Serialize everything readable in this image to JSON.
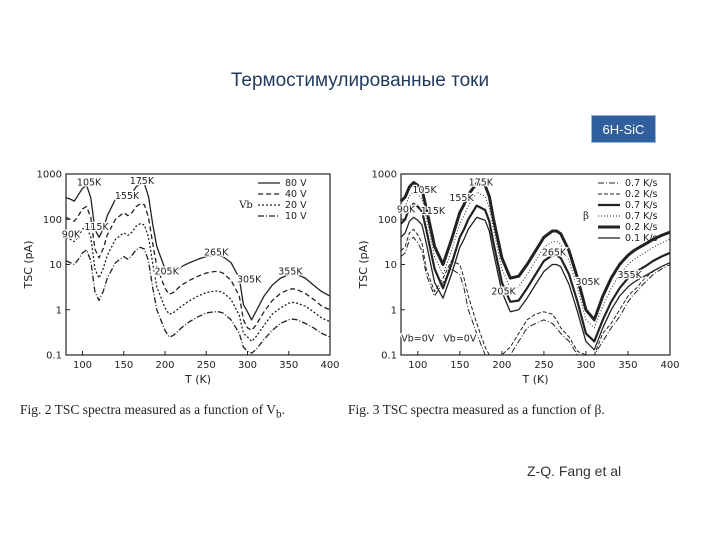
{
  "slide": {
    "title": "Термостимулированные токи",
    "badge": "6H-SiC",
    "author": "Z-Q. Fang et al"
  },
  "colors": {
    "title": "#1f3a5f",
    "badge_bg": "#2f5f9c",
    "badge_text": "#ffffff",
    "ink": "#222222"
  },
  "chart_data": [
    {
      "type": "line",
      "title": "",
      "caption": "Fig. 2   TSC spectra measured as a function of V",
      "xlabel": "T (K)",
      "ylabel": "TSC (pA)",
      "xlim": [
        80,
        400
      ],
      "ylim": [
        0.1,
        1000
      ],
      "yscale": "log",
      "xticks": [
        100,
        150,
        200,
        250,
        300,
        350,
        400
      ],
      "yticks": [
        {
          "value": 0.1,
          "label": "0.1"
        },
        {
          "value": 1,
          "label": "1"
        },
        {
          "value": 10,
          "label": "10"
        },
        {
          "value": 100,
          "label": "100"
        },
        {
          "value": 1000,
          "label": "1000"
        }
      ],
      "legend": {
        "placement": "top-right",
        "symbol": "Vb"
      },
      "annotations": [
        {
          "text": "105K",
          "x": 108,
          "y": 560
        },
        {
          "text": "175K",
          "x": 172,
          "y": 600
        },
        {
          "text": "155K",
          "x": 154,
          "y": 280
        },
        {
          "text": "115K",
          "x": 117,
          "y": 58
        },
        {
          "text": "90K",
          "x": 86,
          "y": 40
        },
        {
          "text": "265K",
          "x": 262,
          "y": 16
        },
        {
          "text": "205K",
          "x": 202,
          "y": 6
        },
        {
          "text": "305K",
          "x": 302,
          "y": 4
        },
        {
          "text": "355K",
          "x": 352,
          "y": 6
        }
      ],
      "series": [
        {
          "name": "80 V",
          "dash": "",
          "x": [
            80,
            85,
            90,
            95,
            100,
            105,
            110,
            115,
            120,
            125,
            130,
            140,
            150,
            155,
            160,
            165,
            170,
            175,
            180,
            185,
            190,
            200,
            205,
            210,
            220,
            230,
            240,
            250,
            260,
            265,
            270,
            280,
            290,
            295,
            300,
            305,
            310,
            320,
            330,
            340,
            350,
            355,
            360,
            370,
            380,
            390,
            400
          ],
          "y": [
            300,
            280,
            250,
            350,
            480,
            560,
            300,
            60,
            40,
            60,
            120,
            280,
            370,
            320,
            380,
            520,
            620,
            600,
            320,
            80,
            25,
            8,
            6,
            6.5,
            9,
            11,
            13,
            15,
            16,
            16,
            15,
            11,
            5,
            1.3,
            0.9,
            0.6,
            0.9,
            2,
            3.5,
            5,
            6,
            6.2,
            6,
            5,
            3.5,
            2.5,
            2
          ]
        },
        {
          "name": "40 V",
          "dash": "5,3",
          "x": [
            80,
            85,
            90,
            95,
            100,
            105,
            110,
            115,
            120,
            125,
            130,
            140,
            150,
            155,
            160,
            165,
            170,
            175,
            180,
            185,
            190,
            200,
            205,
            210,
            220,
            230,
            240,
            250,
            260,
            265,
            270,
            280,
            290,
            295,
            300,
            305,
            310,
            320,
            330,
            340,
            350,
            355,
            360,
            370,
            380,
            390,
            400
          ],
          "y": [
            110,
            100,
            90,
            120,
            170,
            190,
            110,
            22,
            14,
            22,
            45,
            100,
            140,
            120,
            140,
            190,
            220,
            210,
            110,
            30,
            9,
            3,
            2.2,
            2.4,
            3.5,
            4.5,
            5.5,
            6.5,
            7,
            7,
            6.5,
            4.5,
            2,
            0.6,
            0.4,
            0.35,
            0.45,
            0.9,
            1.6,
            2.3,
            2.8,
            2.9,
            2.8,
            2.3,
            1.7,
            1.2,
            1
          ]
        },
        {
          "name": "20 V",
          "dash": "2,2",
          "x": [
            80,
            85,
            90,
            95,
            100,
            105,
            110,
            115,
            120,
            125,
            130,
            140,
            150,
            155,
            160,
            165,
            170,
            175,
            180,
            185,
            190,
            200,
            205,
            210,
            220,
            230,
            240,
            250,
            260,
            265,
            270,
            280,
            290,
            295,
            300,
            305,
            310,
            320,
            330,
            340,
            350,
            355,
            360,
            370,
            380,
            390,
            400
          ],
          "y": [
            40,
            36,
            32,
            42,
            60,
            70,
            40,
            8,
            5,
            8,
            16,
            36,
            50,
            44,
            52,
            70,
            80,
            75,
            40,
            11,
            3.2,
            1.1,
            0.8,
            0.85,
            1.2,
            1.6,
            2,
            2.4,
            2.6,
            2.6,
            2.4,
            1.7,
            0.75,
            0.3,
            0.25,
            0.2,
            0.25,
            0.45,
            0.8,
            1.1,
            1.4,
            1.45,
            1.4,
            1.2,
            0.9,
            0.65,
            0.55
          ]
        },
        {
          "name": "10 V",
          "dash": "6,2,1,2",
          "x": [
            80,
            85,
            90,
            95,
            100,
            105,
            110,
            115,
            120,
            125,
            130,
            140,
            150,
            155,
            160,
            165,
            170,
            175,
            180,
            185,
            190,
            200,
            205,
            210,
            220,
            230,
            240,
            250,
            260,
            265,
            270,
            280,
            290,
            295,
            300,
            305,
            310,
            320,
            330,
            340,
            350,
            355,
            360,
            370,
            380,
            390,
            400
          ],
          "y": [
            12,
            11,
            10,
            13,
            18,
            21,
            12,
            2.5,
            1.6,
            2.5,
            5,
            11,
            15,
            13,
            16,
            21,
            24,
            22,
            12,
            3.2,
            1,
            0.35,
            0.25,
            0.27,
            0.4,
            0.55,
            0.7,
            0.85,
            0.9,
            0.9,
            0.85,
            0.6,
            0.3,
            0.15,
            0.12,
            0.11,
            0.13,
            0.22,
            0.35,
            0.5,
            0.6,
            0.62,
            0.6,
            0.5,
            0.4,
            0.3,
            0.25
          ]
        }
      ]
    },
    {
      "type": "line",
      "title": "",
      "caption": "Fig. 3   TSC spectra measured as a function of β.",
      "xlabel": "T (K)",
      "ylabel": "TSC (pA)",
      "xlim": [
        80,
        400
      ],
      "ylim": [
        0.1,
        1000
      ],
      "yscale": "log",
      "xticks": [
        100,
        150,
        200,
        250,
        300,
        350,
        400
      ],
      "yticks": [
        {
          "value": 0.1,
          "label": "0.1"
        },
        {
          "value": 1,
          "label": "1"
        },
        {
          "value": 10,
          "label": "10"
        },
        {
          "value": 100,
          "label": "100"
        },
        {
          "value": 1000,
          "label": "1000"
        }
      ],
      "legend": {
        "placement": "top-right",
        "symbol": "β"
      },
      "annotations": [
        {
          "text": "105K",
          "x": 108,
          "y": 380
        },
        {
          "text": "175K",
          "x": 175,
          "y": 560
        },
        {
          "text": "155K",
          "x": 152,
          "y": 250
        },
        {
          "text": "90K",
          "x": 86,
          "y": 140
        },
        {
          "text": "115K",
          "x": 118,
          "y": 130
        },
        {
          "text": "265K",
          "x": 262,
          "y": 16
        },
        {
          "text": "205K",
          "x": 202,
          "y": 2.2
        },
        {
          "text": "305K",
          "x": 302,
          "y": 3.5
        },
        {
          "text": "355K",
          "x": 352,
          "y": 5
        },
        {
          "text": "Vb=0V",
          "x": 100,
          "y": 0.2
        },
        {
          "text": "Vb=0V",
          "x": 150,
          "y": 0.2
        }
      ],
      "series": [
        {
          "name": "0.7 K/s",
          "dash": "6,2,1,2",
          "width": 1,
          "x": [
            80,
            85,
            90,
            95,
            100,
            105,
            110,
            120,
            130,
            140,
            150,
            155,
            160,
            170,
            180,
            185,
            190,
            200,
            210,
            220,
            230,
            240,
            250,
            260,
            265,
            270,
            280,
            290,
            300,
            310,
            320,
            330,
            340,
            350,
            355,
            360,
            370,
            380,
            390,
            400
          ],
          "y": [
            15,
            18,
            35,
            40,
            30,
            20,
            6,
            2,
            4,
            8,
            6,
            3,
            1,
            0.3,
            0.1,
            0.1,
            0.1,
            0.1,
            0.1,
            0.2,
            0.4,
            0.5,
            0.6,
            0.5,
            0.4,
            0.3,
            0.2,
            0.1,
            0.1,
            0.1,
            0.2,
            0.4,
            0.7,
            1.5,
            2,
            2.5,
            4,
            6,
            8,
            10
          ]
        },
        {
          "name": "0.2 K/s",
          "dash": "4,2",
          "width": 1,
          "x": [
            80,
            85,
            90,
            95,
            100,
            105,
            110,
            120,
            130,
            140,
            150,
            155,
            160,
            170,
            180,
            185,
            190,
            200,
            210,
            220,
            230,
            240,
            250,
            260,
            265,
            270,
            280,
            290,
            300,
            310,
            320,
            330,
            340,
            350,
            355,
            360,
            370,
            380,
            390,
            400
          ],
          "y": [
            20,
            25,
            50,
            60,
            45,
            30,
            8,
            2.5,
            5,
            12,
            10,
            5,
            2,
            0.5,
            0.15,
            0.1,
            0.1,
            0.1,
            0.15,
            0.3,
            0.6,
            0.8,
            0.9,
            0.8,
            0.6,
            0.4,
            0.25,
            0.12,
            0.1,
            0.1,
            0.3,
            0.5,
            1,
            2,
            2.5,
            3,
            5,
            7,
            9,
            11
          ]
        },
        {
          "name": "0.7 K/s",
          "dash": "",
          "width": 2.2,
          "x": [
            80,
            85,
            90,
            95,
            100,
            105,
            110,
            120,
            130,
            140,
            150,
            155,
            160,
            170,
            180,
            185,
            190,
            200,
            210,
            220,
            230,
            240,
            250,
            260,
            265,
            270,
            280,
            290,
            300,
            310,
            320,
            330,
            340,
            350,
            355,
            360,
            370,
            380,
            390,
            400
          ],
          "y": [
            80,
            100,
            180,
            220,
            190,
            150,
            60,
            8,
            3,
            10,
            40,
            60,
            100,
            200,
            160,
            90,
            30,
            4,
            1.5,
            1.6,
            3,
            6,
            12,
            16,
            16,
            14,
            6,
            1.5,
            0.3,
            0.2,
            0.6,
            1.5,
            3,
            5,
            6,
            7,
            9,
            12,
            15,
            18
          ]
        },
        {
          "name": "0.7 K/s",
          "dash": "1,2",
          "width": 1,
          "x": [
            80,
            85,
            90,
            95,
            100,
            105,
            110,
            120,
            130,
            140,
            150,
            155,
            160,
            170,
            180,
            185,
            190,
            200,
            210,
            220,
            230,
            240,
            250,
            260,
            265,
            270,
            280,
            290,
            300,
            310,
            320,
            330,
            340,
            350,
            355,
            360,
            370,
            380,
            390,
            400
          ],
          "y": [
            150,
            190,
            330,
            400,
            350,
            280,
            110,
            15,
            6,
            20,
            80,
            120,
            200,
            400,
            320,
            180,
            60,
            8,
            3,
            3.2,
            6,
            12,
            24,
            32,
            32,
            28,
            12,
            3,
            0.6,
            0.4,
            1.2,
            3,
            6,
            10,
            12,
            14,
            18,
            24,
            30,
            36
          ]
        },
        {
          "name": "0.2 K/s",
          "dash": "",
          "width": 3,
          "x": [
            80,
            85,
            90,
            95,
            100,
            105,
            110,
            120,
            130,
            140,
            150,
            155,
            160,
            170,
            180,
            185,
            190,
            200,
            210,
            220,
            230,
            240,
            250,
            260,
            265,
            270,
            280,
            290,
            300,
            310,
            320,
            330,
            340,
            350,
            355,
            360,
            370,
            380,
            390,
            400
          ],
          "y": [
            250,
            310,
            520,
            650,
            560,
            450,
            180,
            25,
            10,
            35,
            140,
            210,
            350,
            620,
            560,
            320,
            100,
            14,
            5,
            5.5,
            10,
            20,
            40,
            55,
            55,
            48,
            20,
            5,
            1,
            0.6,
            2,
            5,
            10,
            16,
            19,
            22,
            28,
            36,
            44,
            52
          ]
        },
        {
          "name": "0.1 K/s",
          "dash": "",
          "width": 1.3,
          "x": [
            80,
            85,
            90,
            95,
            100,
            105,
            110,
            120,
            130,
            140,
            150,
            155,
            160,
            170,
            180,
            185,
            190,
            200,
            210,
            220,
            230,
            240,
            250,
            260,
            265,
            270,
            280,
            290,
            300,
            310,
            320,
            330,
            340,
            350,
            355,
            360,
            370,
            380,
            390,
            400
          ],
          "y": [
            40,
            50,
            90,
            110,
            95,
            75,
            30,
            4,
            1.8,
            6,
            24,
            36,
            60,
            110,
            95,
            55,
            18,
            2.5,
            0.9,
            1,
            1.8,
            3.6,
            7,
            10,
            10,
            9,
            3.6,
            0.9,
            0.2,
            0.13,
            0.4,
            1,
            2,
            3.2,
            3.8,
            4.4,
            5.6,
            7.2,
            9,
            11
          ]
        }
      ]
    }
  ]
}
